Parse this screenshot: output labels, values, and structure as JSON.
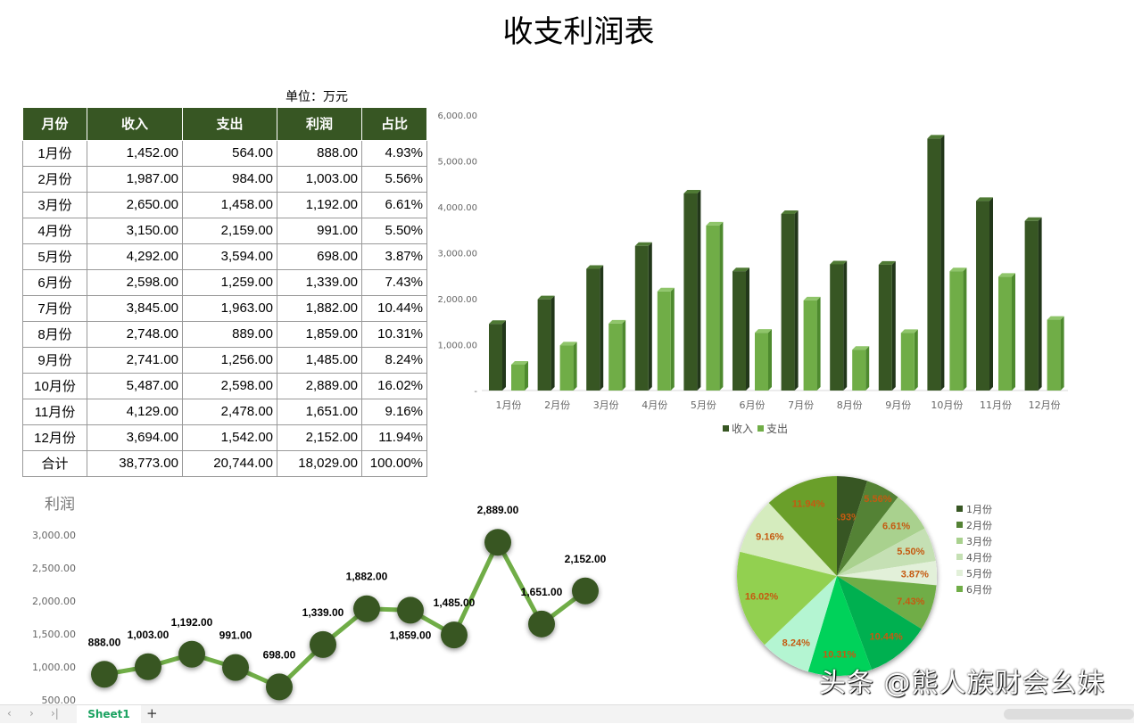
{
  "title": "收支利润表",
  "unit": "单位：万元",
  "table": {
    "headers": [
      "月份",
      "收入",
      "支出",
      "利润",
      "占比"
    ],
    "rows": [
      [
        "1月份",
        "1,452.00",
        "564.00",
        "888.00",
        "4.93%"
      ],
      [
        "2月份",
        "1,987.00",
        "984.00",
        "1,003.00",
        "5.56%"
      ],
      [
        "3月份",
        "2,650.00",
        "1,458.00",
        "1,192.00",
        "6.61%"
      ],
      [
        "4月份",
        "3,150.00",
        "2,159.00",
        "991.00",
        "5.50%"
      ],
      [
        "5月份",
        "4,292.00",
        "3,594.00",
        "698.00",
        "3.87%"
      ],
      [
        "6月份",
        "2,598.00",
        "1,259.00",
        "1,339.00",
        "7.43%"
      ],
      [
        "7月份",
        "3,845.00",
        "1,963.00",
        "1,882.00",
        "10.44%"
      ],
      [
        "8月份",
        "2,748.00",
        "889.00",
        "1,859.00",
        "10.31%"
      ],
      [
        "9月份",
        "2,741.00",
        "1,256.00",
        "1,485.00",
        "8.24%"
      ],
      [
        "10月份",
        "5,487.00",
        "2,598.00",
        "2,889.00",
        "16.02%"
      ],
      [
        "11月份",
        "4,129.00",
        "2,478.00",
        "1,651.00",
        "9.16%"
      ],
      [
        "12月份",
        "3,694.00",
        "1,542.00",
        "2,152.00",
        "11.94%"
      ],
      [
        "合计",
        "38,773.00",
        "20,744.00",
        "18,029.00",
        "100.00%"
      ]
    ]
  },
  "chart_data": [
    {
      "type": "bar",
      "categories": [
        "1月份",
        "2月份",
        "3月份",
        "4月份",
        "5月份",
        "6月份",
        "7月份",
        "8月份",
        "9月份",
        "10月份",
        "11月份",
        "12月份"
      ],
      "series": [
        {
          "name": "收入",
          "color": "#375623",
          "values": [
            1452,
            1987,
            2650,
            3150,
            4292,
            2598,
            3845,
            2748,
            2741,
            5487,
            4129,
            3694
          ]
        },
        {
          "name": "支出",
          "color": "#70ad47",
          "values": [
            564,
            984,
            1458,
            2159,
            3594,
            1259,
            1963,
            889,
            1256,
            2598,
            2478,
            1542
          ]
        }
      ],
      "ylim": [
        0,
        6000
      ],
      "yticks": [
        "-",
        "1,000.00",
        "2,000.00",
        "3,000.00",
        "4,000.00",
        "5,000.00",
        "6,000.00"
      ],
      "legend": "bottom"
    },
    {
      "type": "line",
      "title": "利润",
      "values": [
        888,
        1003,
        1192,
        991,
        698,
        1339,
        1882,
        1859,
        1485,
        2889,
        1651,
        2152
      ],
      "labels": [
        "888.00",
        "1,003.00",
        "1,192.00",
        "991.00",
        "698.00",
        "1,339.00",
        "1,882.00",
        "1,859.00",
        "1,485.00",
        "2,889.00",
        "1,651.00",
        "2,152.00"
      ],
      "yticks": [
        "500.00",
        "1,000.00",
        "1,500.00",
        "2,000.00",
        "2,500.00",
        "3,000.00"
      ],
      "line_color": "#70ad47",
      "marker_color": "#375623"
    },
    {
      "type": "pie",
      "values": [
        4.93,
        5.56,
        6.61,
        5.5,
        3.87,
        7.43,
        10.44,
        10.31,
        8.24,
        16.02,
        9.16,
        11.94
      ],
      "labels": [
        "4.93%",
        "5.56%",
        "6.61%",
        "5.50%",
        "3.87%",
        "7.43%",
        "10.44%",
        "10.31%",
        "8.24%",
        "16.02%",
        "9.16%",
        "11.94%"
      ],
      "colors": [
        "#375623",
        "#548235",
        "#a9d18e",
        "#c5e0b4",
        "#e2f0d9",
        "#70ad47",
        "#00b050",
        "#00d25a",
        "#b4f5d2",
        "#92d050",
        "#d5ecbe",
        "#6a9f2a"
      ],
      "legend": [
        "1月份",
        "2月份",
        "3月份",
        "4月份",
        "5月份",
        "6月份"
      ],
      "label_color": "#c55a11"
    }
  ],
  "sheet": {
    "tab": "Sheet1",
    "add": "+"
  },
  "watermark": "头条 @熊人族财会幺妹"
}
